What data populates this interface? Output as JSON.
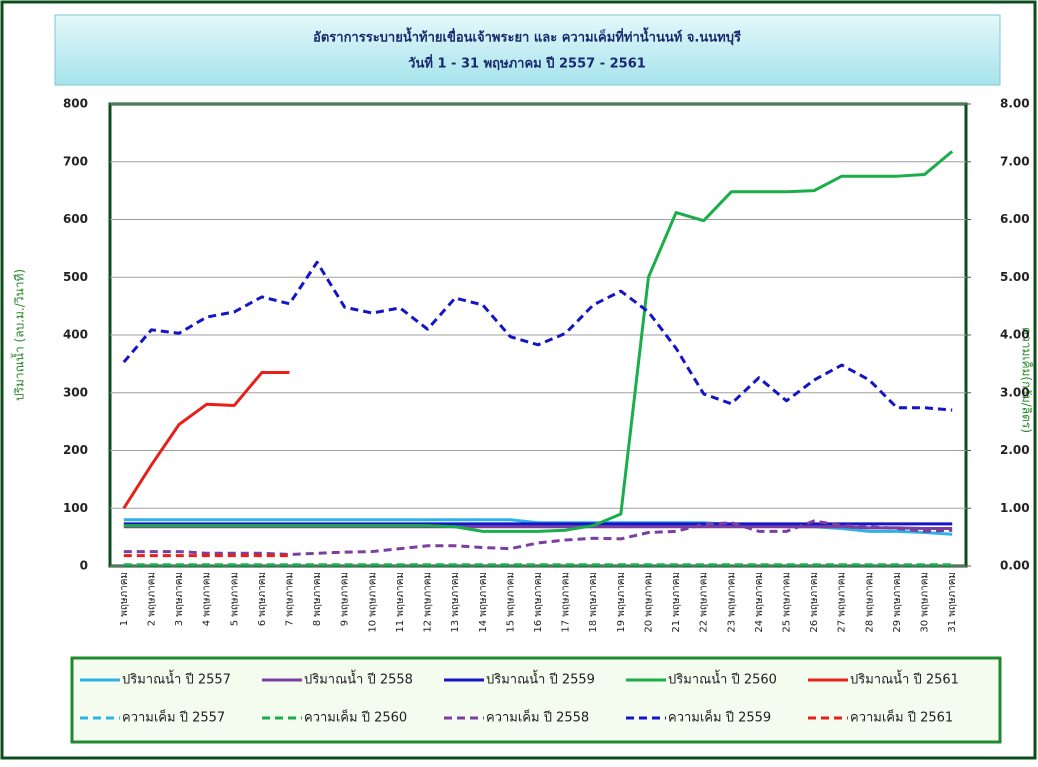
{
  "chart_data": {
    "type": "line",
    "title": "อัตราการระบายน้ำท้ายเขื่อนเจ้าพระยา และ ความเค็มที่ท่าน้ำนนท์ จ.นนทบุรี",
    "subtitle": "วันที่ 1 - 31 พฤษภาคม ปี 2557 - 2561",
    "ylabel": "ปริมาณน้ำ (ลบ.ม./วินาที)",
    "y2label": "ความเค็ม(กรัม/ลิตร)",
    "categories": [
      "1 พฤษภาคม",
      "2 พฤษภาคม",
      "3 พฤษภาคม",
      "4 พฤษภาคม",
      "5 พฤษภาคม",
      "6 พฤษภาคม",
      "7 พฤษภาคม",
      "8 พฤษภาคม",
      "9 พฤษภาคม",
      "10 พฤษภาคม",
      "11 พฤษภาคม",
      "12 พฤษภาคม",
      "13 พฤษภาคม",
      "14 พฤษภาคม",
      "15 พฤษภาคม",
      "16 พฤษภาคม",
      "17 พฤษภาคม",
      "18 พฤษภาคม",
      "19 พฤษภาคม",
      "20 พฤษภาคม",
      "21 พฤษภาคม",
      "22 พฤษภาคม",
      "23 พฤษภาคม",
      "24 พฤษภาคม",
      "25 พฤษภาคม",
      "26 พฤษภาคม",
      "27 พฤษภาคม",
      "28 พฤษภาคม",
      "29 พฤษภาคม",
      "30 พฤษภาคม",
      "31 พฤษภาคม"
    ],
    "ylim": [
      0,
      800
    ],
    "yticks": [
      0,
      100,
      200,
      300,
      400,
      500,
      600,
      700,
      800
    ],
    "y2lim": [
      0,
      8
    ],
    "y2ticks": [
      {
        "value": 0,
        "label": "0.00"
      },
      {
        "value": 1,
        "label": "1.00"
      },
      {
        "value": 2,
        "label": "2.00"
      },
      {
        "value": 3,
        "label": "3.00"
      },
      {
        "value": 4,
        "label": "4.00"
      },
      {
        "value": 5,
        "label": "5.00"
      },
      {
        "value": 6,
        "label": "6.00"
      },
      {
        "value": 7,
        "label": "7.00"
      },
      {
        "value": 8,
        "label": "8.00"
      }
    ],
    "grid": true,
    "series": [
      {
        "name": "ปริมาณน้ำ ปี 2557",
        "color": "#2fb3e6",
        "style": "solid",
        "values": [
          80,
          80,
          80,
          80,
          80,
          80,
          80,
          80,
          80,
          80,
          80,
          80,
          80,
          80,
          80,
          75,
          75,
          75,
          75,
          75,
          75,
          75,
          72,
          70,
          68,
          68,
          65,
          60,
          60,
          58,
          55
        ]
      },
      {
        "name": "ปริมาณน้ำ ปี 2558",
        "color": "#7b3fa0",
        "style": "solid",
        "values": [
          68,
          68,
          68,
          68,
          68,
          68,
          68,
          68,
          68,
          68,
          68,
          68,
          68,
          68,
          68,
          68,
          68,
          68,
          68,
          68,
          68,
          68,
          68,
          68,
          68,
          68,
          68,
          66,
          66,
          65,
          65
        ]
      },
      {
        "name": "ปริมาณน้ำ ปี 2559",
        "color": "#1414c8",
        "style": "solid",
        "values": [
          73,
          73,
          73,
          73,
          73,
          73,
          73,
          73,
          73,
          73,
          73,
          73,
          73,
          73,
          73,
          73,
          73,
          73,
          73,
          73,
          73,
          73,
          73,
          73,
          73,
          73,
          73,
          73,
          73,
          73,
          73
        ]
      },
      {
        "name": "ปริมาณน้ำ ปี 2560",
        "color": "#1aae4a",
        "style": "solid",
        "values": [
          70,
          70,
          70,
          70,
          70,
          70,
          70,
          70,
          70,
          70,
          70,
          70,
          68,
          60,
          60,
          60,
          62,
          70,
          90,
          500,
          612,
          598,
          648,
          648,
          648,
          650,
          675,
          675,
          675,
          678,
          718
        ]
      },
      {
        "name": "ปริมาณน้ำ ปี 2561",
        "color": "#e8201a",
        "style": "solid",
        "values": [
          100,
          175,
          245,
          280,
          278,
          335,
          335,
          null,
          null,
          null,
          null,
          null,
          null,
          null,
          null,
          null,
          null,
          null,
          null,
          null,
          null,
          null,
          null,
          null,
          null,
          null,
          null,
          null,
          null,
          null,
          null
        ]
      },
      {
        "name": "ความเค็ม ปี 2557",
        "color": "#2fb3e6",
        "style": "dash",
        "axis": "y2",
        "values": [
          0.02,
          0.02,
          0.02,
          0.02,
          0.02,
          0.02,
          0.02,
          0.02,
          0.02,
          0.02,
          0.02,
          0.02,
          0.02,
          0.02,
          0.02,
          0.02,
          0.02,
          0.02,
          0.02,
          0.02,
          0.02,
          0.02,
          0.02,
          0.02,
          0.02,
          0.02,
          0.02,
          0.02,
          0.02,
          0.02,
          0.02
        ]
      },
      {
        "name": "ความเค็ม ปี 2560",
        "color": "#1aae4a",
        "style": "dash",
        "axis": "y2",
        "values": [
          0.02,
          0.02,
          0.02,
          0.02,
          0.02,
          0.02,
          0.02,
          0.02,
          0.02,
          0.02,
          0.02,
          0.02,
          0.02,
          0.02,
          0.02,
          0.02,
          0.02,
          0.02,
          0.02,
          0.02,
          0.02,
          0.02,
          0.02,
          0.02,
          0.02,
          0.02,
          0.02,
          0.02,
          0.02,
          0.02,
          0.02
        ]
      },
      {
        "name": "ความเค็ม ปี 2558",
        "color": "#7b3fa0",
        "style": "dash",
        "axis": "y2",
        "values": [
          0.25,
          0.25,
          0.25,
          0.22,
          0.22,
          0.22,
          0.2,
          0.22,
          0.24,
          0.25,
          0.3,
          0.35,
          0.35,
          0.32,
          0.3,
          0.4,
          0.45,
          0.48,
          0.47,
          0.58,
          0.6,
          0.72,
          0.75,
          0.6,
          0.6,
          0.78,
          0.7,
          0.68,
          0.65,
          0.6,
          0.62
        ]
      },
      {
        "name": "ความเค็ม ปี 2559",
        "color": "#1414c8",
        "style": "dash",
        "axis": "y2",
        "values": [
          3.53,
          4.09,
          4.03,
          4.31,
          4.4,
          4.66,
          4.54,
          5.26,
          4.48,
          4.38,
          4.47,
          4.1,
          4.64,
          4.52,
          3.97,
          3.83,
          4.03,
          4.52,
          4.76,
          4.4,
          3.77,
          2.98,
          2.81,
          3.26,
          2.86,
          3.22,
          3.48,
          3.22,
          2.74,
          2.74,
          2.7
        ]
      },
      {
        "name": "ความเค็ม ปี 2561",
        "color": "#e8201a",
        "style": "dash",
        "axis": "y2",
        "values": [
          0.18,
          0.18,
          0.18,
          0.18,
          0.18,
          0.18,
          0.18,
          null,
          null,
          null,
          null,
          null,
          null,
          null,
          null,
          null,
          null,
          null,
          null,
          null,
          null,
          null,
          null,
          null,
          null,
          null,
          null,
          null,
          null,
          null,
          null
        ]
      }
    ]
  }
}
